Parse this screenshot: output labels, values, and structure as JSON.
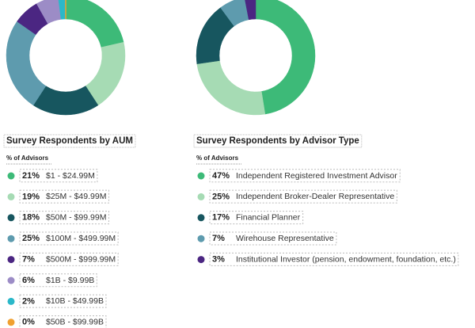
{
  "chart_data": [
    {
      "type": "donut",
      "title": "Survey Respondents by AUM",
      "legend_title": "% of Advisors",
      "categories": [
        "$1 - $24.99M",
        "$25M - $49.99M",
        "$50M - $99.99M",
        "$100M - $499.99M",
        "$500M - $999.99M",
        "$1B - $9.99B",
        "$10B - $49.99B",
        "$50B - $99.99B"
      ],
      "values": [
        21,
        19,
        18,
        25,
        7,
        6,
        2,
        0
      ],
      "value_labels": [
        "21%",
        "19%",
        "18%",
        "25%",
        "7%",
        "6%",
        "2%",
        "0%"
      ],
      "colors": [
        "#3dba78",
        "#a6dbb4",
        "#17565f",
        "#5e9bae",
        "#4b2682",
        "#9c8cc6",
        "#2bb8c9",
        "#f0a030"
      ]
    },
    {
      "type": "donut",
      "title": "Survey Respondents by Advisor Type",
      "legend_title": "% of Advisors",
      "categories": [
        "Independent Registered Investment Advisor",
        "Independent Broker-Dealer Representative",
        "Financial Planner",
        "Wirehouse Representative",
        "Institutional Investor (pension, endowment, foundation, etc.)"
      ],
      "values": [
        47,
        25,
        17,
        7,
        3
      ],
      "value_labels": [
        "47%",
        "25%",
        "17%",
        "7%",
        "3%"
      ],
      "colors": [
        "#3dba78",
        "#a6dbb4",
        "#17565f",
        "#5e9bae",
        "#4b2682"
      ]
    }
  ]
}
